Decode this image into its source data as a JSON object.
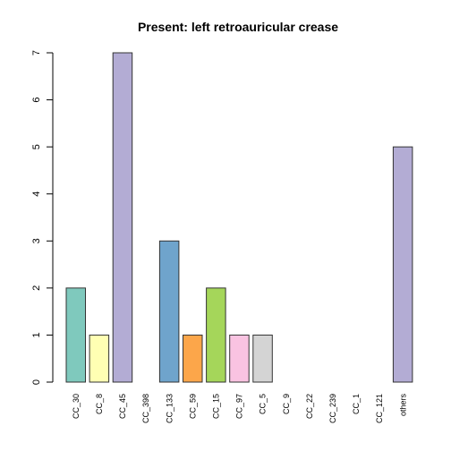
{
  "chart_data": {
    "type": "bar",
    "title": "Present:  left retroauricular crease",
    "xlabel": "",
    "ylabel": "",
    "ylim": [
      0,
      7
    ],
    "y_ticks": [
      0,
      1,
      2,
      3,
      4,
      5,
      6,
      7
    ],
    "grid": false,
    "categories": [
      "CC_30",
      "CC_8",
      "CC_45",
      "CC_398",
      "CC_133",
      "CC_59",
      "CC_15",
      "CC_97",
      "CC_5",
      "CC_9",
      "CC_22",
      "CC_239",
      "CC_1",
      "CC_121",
      "others"
    ],
    "values": [
      2,
      1,
      7,
      0,
      3,
      1,
      2,
      1,
      1,
      0,
      0,
      0,
      0,
      0,
      5
    ],
    "colors": [
      "#7fc9bd",
      "#ffffb3",
      "#b3acd4",
      "#fb8072",
      "#6fa4cc",
      "#fca64a",
      "#a5d65a",
      "#f9c3e1",
      "#d4d4d4",
      "#b97bb9",
      "#c9e7c1",
      "#fdea7a",
      "#7fc9bd",
      "#ffffb3",
      "#b3acd4"
    ]
  }
}
